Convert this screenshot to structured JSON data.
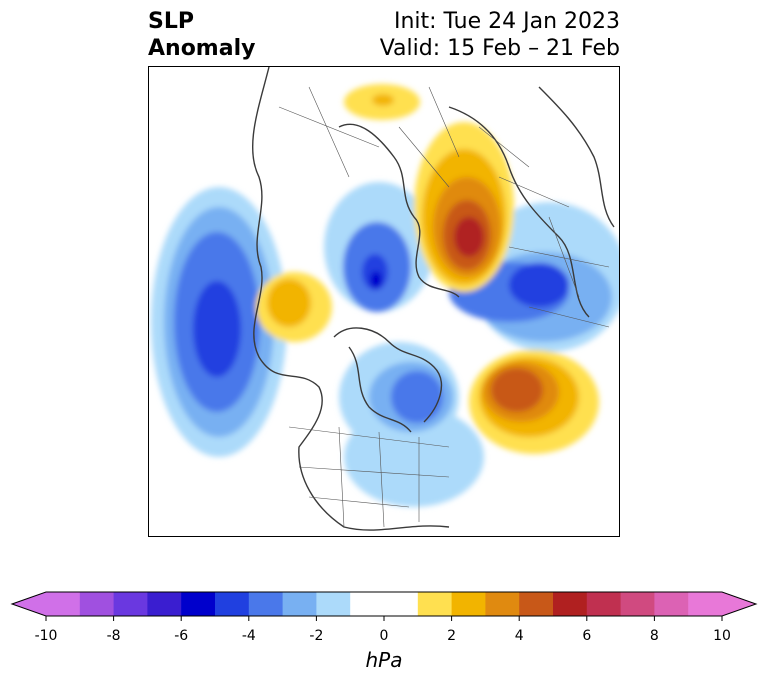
{
  "title": {
    "left_line1": "SLP",
    "left_line2": "Anomaly",
    "right_line1": "Init: Tue 24 Jan 2023",
    "right_line2": "Valid: 15 Feb – 21 Feb"
  },
  "colorbar": {
    "label": "hPa",
    "ticks": [
      "-10",
      "-8",
      "-6",
      "-4",
      "-2",
      "0",
      "2",
      "4",
      "6",
      "8",
      "10"
    ],
    "colors": [
      "#d070e8",
      "#a050e0",
      "#6a38e0",
      "#3a1ed0",
      "#0000cc",
      "#2040e0",
      "#4a78ea",
      "#78b0f2",
      "#acdafa",
      "#ffffff",
      "#ffffff",
      "#ffe050",
      "#f2b400",
      "#e08a10",
      "#c85818",
      "#b02020",
      "#c03050",
      "#d04a80",
      "#dc62b4",
      "#e878d8"
    ]
  },
  "map_colors": {
    "coast": "#3a3a3a",
    "border": "#555555"
  }
}
